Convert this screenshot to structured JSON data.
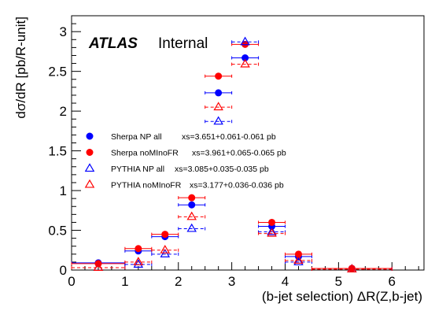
{
  "chart_data": {
    "type": "scatter",
    "experiment_label": "ATLAS",
    "status_label": "Internal",
    "xlabel": "(b-jet selection) ΔR(Z,b-jet)",
    "ylabel": "dσ/dR [pb/R-unit]",
    "xlim": [
      0,
      6.6
    ],
    "ylim": [
      0,
      3.2
    ],
    "x_ticks": [
      0,
      1,
      2,
      3,
      4,
      5,
      6
    ],
    "x_tick_labels": [
      "0",
      "1",
      "2",
      "3",
      "4",
      "5",
      "6"
    ],
    "y_ticks": [
      0,
      0.5,
      1,
      1.5,
      2,
      2.5,
      3
    ],
    "y_tick_labels": [
      "0",
      "0.5",
      "1",
      "1.5",
      "2",
      "2.5",
      "3"
    ],
    "bins": [
      {
        "lo": 0.0,
        "hi": 1.0
      },
      {
        "lo": 1.0,
        "hi": 1.5
      },
      {
        "lo": 1.5,
        "hi": 2.0
      },
      {
        "lo": 2.0,
        "hi": 2.5
      },
      {
        "lo": 2.5,
        "hi": 3.0
      },
      {
        "lo": 3.0,
        "hi": 3.5
      },
      {
        "lo": 3.5,
        "hi": 4.0
      },
      {
        "lo": 4.0,
        "hi": 4.5
      },
      {
        "lo": 4.5,
        "hi": 6.0
      }
    ],
    "legend_position": "middle-left",
    "series": [
      {
        "name": "Sherpa NP all",
        "xs_label": "xs=3.651+0.061-0.061 pb",
        "marker": "circle-filled",
        "color": "#0000ff",
        "line": "solid",
        "x": [
          0.5,
          1.25,
          1.75,
          2.25,
          2.75,
          3.25,
          3.75,
          4.25,
          5.25
        ],
        "values": [
          0.09,
          0.24,
          0.42,
          0.82,
          2.23,
          2.67,
          0.55,
          0.17,
          0.02
        ]
      },
      {
        "name": "Sherpa noMInoFR",
        "xs_label": "xs=3.961+0.065-0.065 pb",
        "marker": "circle-filled",
        "color": "#ff0000",
        "line": "solid",
        "x": [
          0.5,
          1.25,
          1.75,
          2.25,
          2.75,
          3.25,
          3.75,
          4.25,
          5.25
        ],
        "values": [
          0.08,
          0.27,
          0.45,
          0.91,
          2.44,
          2.84,
          0.6,
          0.2,
          0.02
        ]
      },
      {
        "name": "PYTHIA NP all",
        "xs_label": "xs=3.085+0.035-0.035 pb",
        "marker": "triangle-open",
        "color": "#0000ff",
        "line": "dashed",
        "x": [
          0.5,
          1.25,
          1.75,
          2.25,
          2.75,
          3.25,
          3.75,
          4.25,
          5.25
        ],
        "values": [
          0.03,
          0.07,
          0.2,
          0.52,
          1.87,
          2.87,
          0.48,
          0.1,
          0.01
        ]
      },
      {
        "name": "PYTHIA noMInoFR",
        "xs_label": "xs=3.177+0.036-0.036 pb",
        "marker": "triangle-open",
        "color": "#ff0000",
        "line": "dashed",
        "x": [
          0.5,
          1.25,
          1.75,
          2.25,
          2.75,
          3.25,
          3.75,
          4.25,
          5.25
        ],
        "values": [
          0.03,
          0.1,
          0.25,
          0.67,
          2.05,
          2.59,
          0.46,
          0.12,
          0.01
        ]
      }
    ]
  }
}
